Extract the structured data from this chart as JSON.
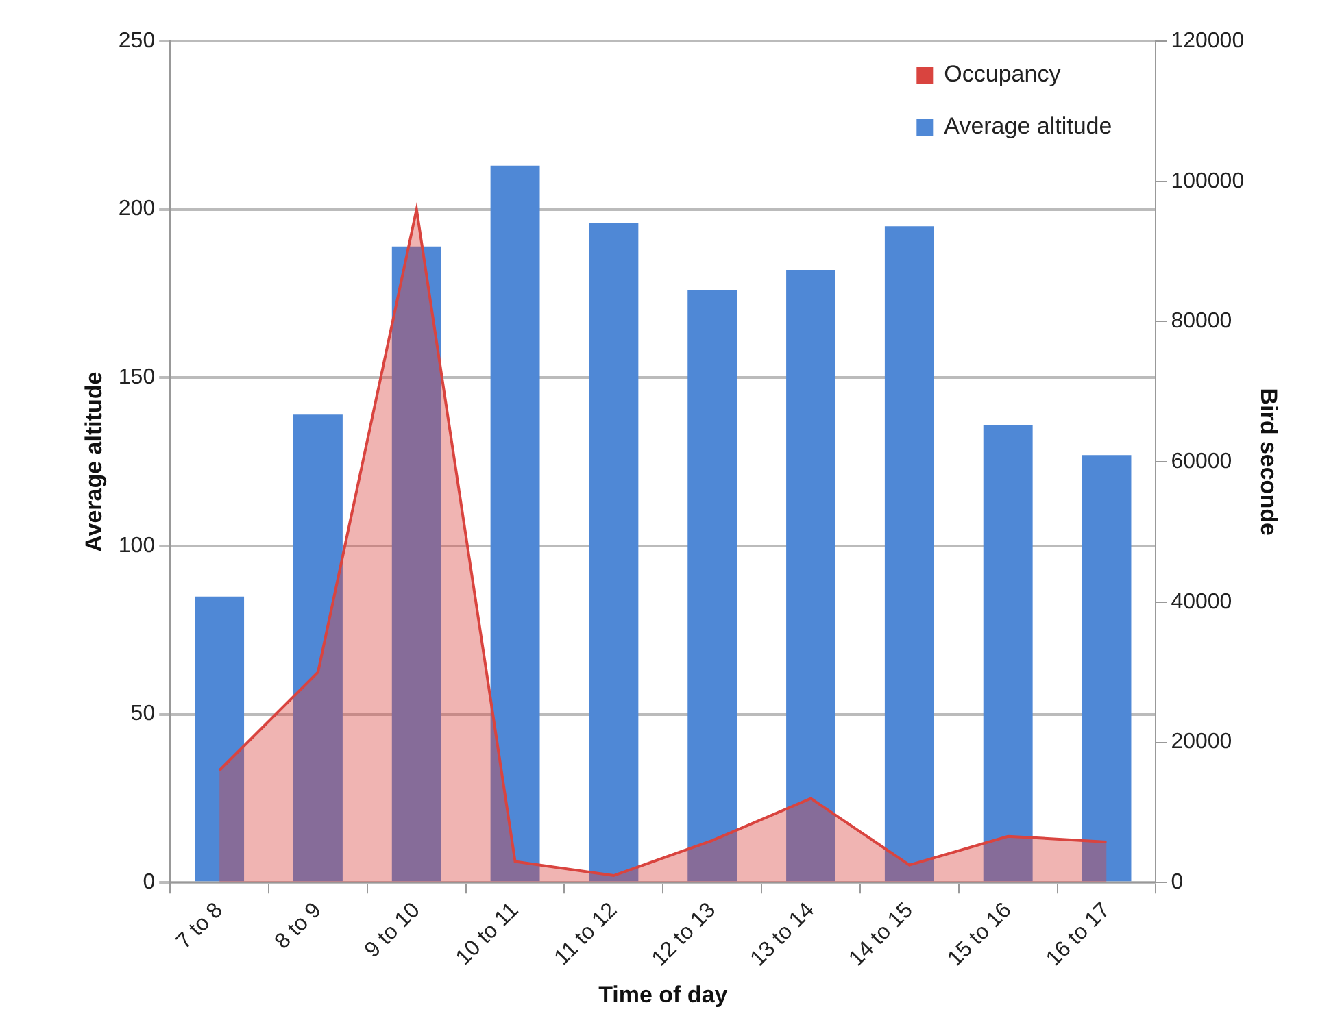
{
  "chart_data": {
    "type": "bar",
    "xlabel": "Time of day",
    "ylabel": "Average altitude",
    "y2label": "Bird seconde",
    "categories": [
      "7 to 8",
      "8 to 9",
      "9 to 10",
      "10 to 11",
      "11 to 12",
      "12 to 13",
      "13 to 14",
      "14 to 15",
      "15 to 16",
      "16 to 17"
    ],
    "series": [
      {
        "name": "Occupancy",
        "type": "area",
        "axis": "y2",
        "color": "#d9443f",
        "values": [
          16000,
          30000,
          96000,
          3000,
          1000,
          6000,
          12000,
          2500,
          6600,
          5800
        ]
      },
      {
        "name": "Average altitude",
        "type": "bar",
        "color": "#4f88d6",
        "values": [
          85,
          139,
          189,
          213,
          196,
          176,
          182,
          195,
          136,
          127
        ]
      }
    ],
    "ylim": [
      0,
      250
    ],
    "yticks": [
      0,
      50,
      100,
      150,
      200,
      250
    ],
    "y2lim": [
      0,
      120000
    ],
    "y2ticks": [
      0,
      20000,
      40000,
      60000,
      80000,
      100000,
      120000
    ],
    "grid": "y",
    "legend": "top right"
  }
}
